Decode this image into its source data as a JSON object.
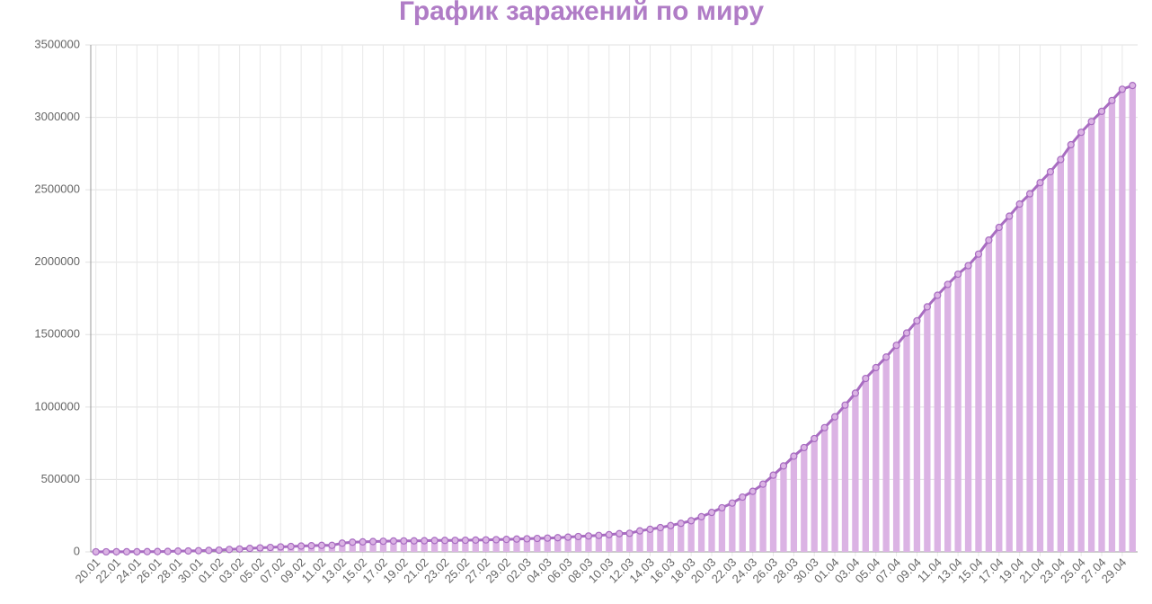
{
  "chart_data": {
    "type": "bar",
    "title": "График заражений по миру",
    "categories": [
      "20.01",
      null,
      "22.01",
      null,
      "24.01",
      null,
      "26.01",
      null,
      "28.01",
      null,
      "30.01",
      null,
      "01.02",
      null,
      "03.02",
      null,
      "05.02",
      null,
      "07.02",
      null,
      "09.02",
      null,
      "11.02",
      null,
      "13.02",
      null,
      "15.02",
      null,
      "17.02",
      null,
      "19.02",
      null,
      "21.02",
      null,
      "23.02",
      null,
      "25.02",
      null,
      "27.02",
      null,
      "29.02",
      null,
      "02.03",
      null,
      "04.03",
      null,
      "06.03",
      null,
      "08.03",
      null,
      "10.03",
      null,
      "12.03",
      null,
      "14.03",
      null,
      "16.03",
      null,
      "18.03",
      null,
      "20.03",
      null,
      "22.03",
      null,
      "24.03",
      null,
      "26.03",
      null,
      "28.03",
      null,
      "30.03",
      null,
      "01.04",
      null,
      "03.04",
      null,
      "05.04",
      null,
      "07.04",
      null,
      "09.04",
      null,
      "11.04",
      null,
      "13.04",
      null,
      "15.04",
      null,
      "17.04",
      null,
      "19.04",
      null,
      "21.04",
      null,
      "23.04",
      null,
      "25.04",
      null,
      "27.04",
      null,
      "29.04",
      null
    ],
    "values": [
      282,
      314,
      555,
      654,
      941,
      1434,
      2118,
      2927,
      5578,
      6166,
      8234,
      9927,
      12038,
      16787,
      19881,
      23892,
      27635,
      30794,
      34391,
      37120,
      40150,
      42762,
      44802,
      45221,
      60368,
      66885,
      69030,
      71224,
      73258,
      75136,
      75639,
      76197,
      76819,
      78572,
      78958,
      79561,
      80406,
      81388,
      82746,
      84112,
      86011,
      88369,
      90306,
      92840,
      95120,
      97886,
      101801,
      105847,
      109821,
      113590,
      118620,
      125875,
      128352,
      145205,
      156101,
      167454,
      181574,
      197102,
      214821,
      242570,
      272208,
      304507,
      336953,
      378235,
      418045,
      467653,
      529591,
      593291,
      660706,
      720117,
      782365,
      857487,
      932605,
      1013466,
      1095917,
      1197405,
      1272115,
      1345101,
      1426096,
      1511104,
      1595350,
      1691719,
      1771514,
      1846680,
      1917320,
      1976192,
      2056054,
      2152437,
      2240190,
      2317759,
      2401378,
      2472259,
      2549123,
      2624074,
      2708885,
      2811193,
      2896746,
      2971475,
      3041764,
      3116398,
      3193886,
      3220000
    ],
    "color": "#dbb3e4",
    "line_color": "#a86cc1",
    "ylim": [
      0,
      3500000
    ],
    "yticks": [
      0,
      500000,
      1000000,
      1500000,
      2000000,
      2500000,
      3000000,
      3500000
    ],
    "grid": true
  }
}
